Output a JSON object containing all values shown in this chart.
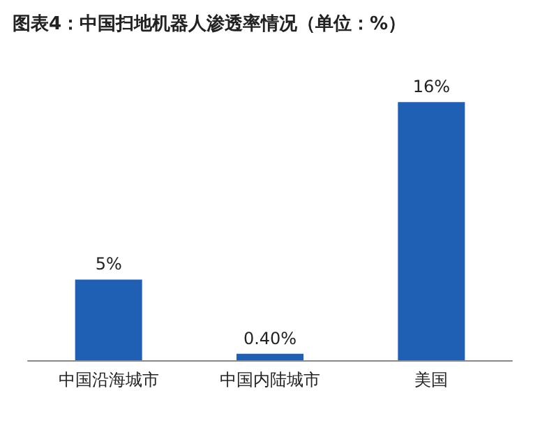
{
  "chart_data": {
    "type": "bar",
    "title": "图表4：中国扫地机器人渗透率情况（单位：%）",
    "categories": [
      "中国沿海城市",
      "中国内陆城市",
      "美国"
    ],
    "values": [
      5,
      0.4,
      16
    ],
    "value_labels": [
      "5%",
      "0.40%",
      "16%"
    ],
    "color": "#1f5fb4"
  }
}
